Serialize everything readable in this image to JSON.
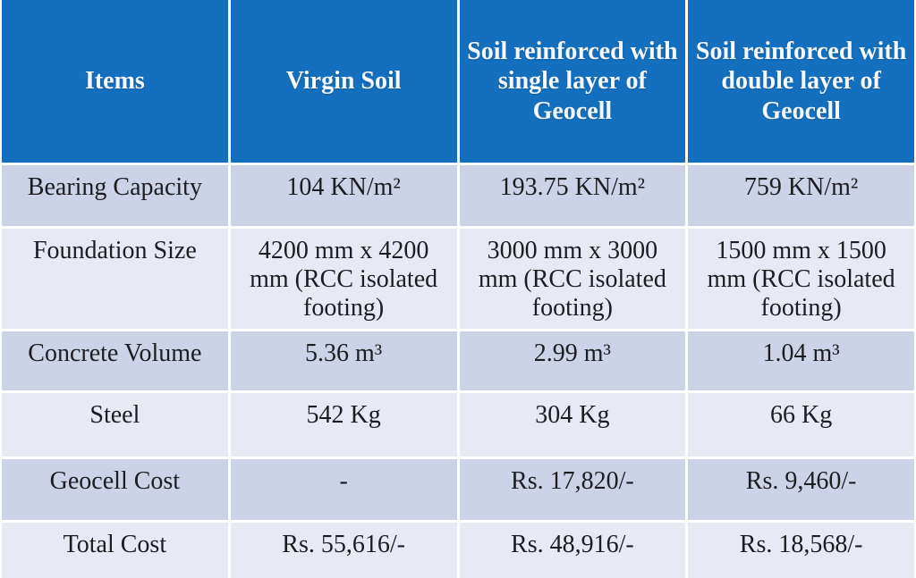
{
  "table": {
    "columns": [
      "Items",
      "Virgin Soil",
      "Soil reinforced with single layer of Geocell",
      "Soil reinforced with double layer of Geocell"
    ],
    "rows": [
      {
        "cells": [
          "Bearing Capacity",
          "104 KN/m²",
          "193.75 KN/m²",
          "759 KN/m²"
        ]
      },
      {
        "cells": [
          "Foundation Size",
          "4200 mm x 4200 mm (RCC isolated footing)",
          "3000 mm x 3000 mm (RCC isolated footing)",
          "1500 mm x 1500 mm (RCC isolated footing)"
        ]
      },
      {
        "cells": [
          "Concrete Volume",
          "5.36 m³",
          "2.99 m³",
          "1.04 m³"
        ]
      },
      {
        "cells": [
          "Steel",
          "542 Kg",
          "304 Kg",
          "66 Kg"
        ]
      },
      {
        "cells": [
          "Geocell Cost",
          "-",
          "Rs. 17,820/-",
          "Rs. 9,460/-"
        ]
      },
      {
        "cells": [
          "Total Cost",
          "Rs. 55,616/-",
          "Rs. 48,916/-",
          "Rs. 18,568/-"
        ]
      }
    ]
  },
  "colors": {
    "header_bg": "#1470BF",
    "row_dark": "#CDD3E7",
    "row_light": "#E7EAF5",
    "header_text": "#F5F8FC",
    "body_text": "#1D1D1F",
    "grid_line": "#FFFFFF"
  }
}
